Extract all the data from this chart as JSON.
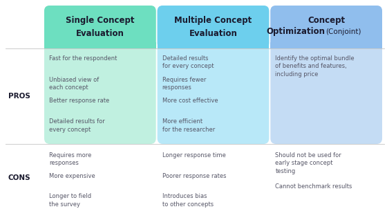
{
  "bg_color": "#ffffff",
  "col_header_colors": [
    "#6ddfc0",
    "#6dcfed",
    "#90beed"
  ],
  "col_pros_colors": [
    "#c0f0e0",
    "#b8e8f8",
    "#c4dcf4"
  ],
  "text_color_dark": "#1a1a2e",
  "text_color_body": "#555566",
  "divider_color": "#cccccc",
  "headers": [
    {
      "bold": "Single Concept\nEvaluation"
    },
    {
      "bold": "Multiple Concept\nEvaluation"
    },
    {
      "bold": "Concept\nOptimization",
      "extra": " (Conjoint)"
    }
  ],
  "pros_label": "PROS",
  "cons_label": "CONS",
  "col_pros": [
    [
      "Fast for the respondent",
      "Unbiased view of\neach concept",
      "Better response rate",
      "Detailed results for\nevery concept"
    ],
    [
      "Detailed results\nfor every concept",
      "Requires fewer\nresponses",
      "More cost effective",
      "More efficient\nfor the researcher"
    ],
    [
      "Identify the optimal bundle\nof benefits and features,\nincluding price"
    ]
  ],
  "col_cons": [
    [
      "Requires more\nresponses",
      "More expensive",
      "Longer to field\nthe survey"
    ],
    [
      "Longer response time",
      "Poorer response rates",
      "Introduces bias\nto other concepts"
    ],
    [
      "Should not be used for\nearly stage concept\ntesting",
      "Cannot benchmark results"
    ]
  ]
}
